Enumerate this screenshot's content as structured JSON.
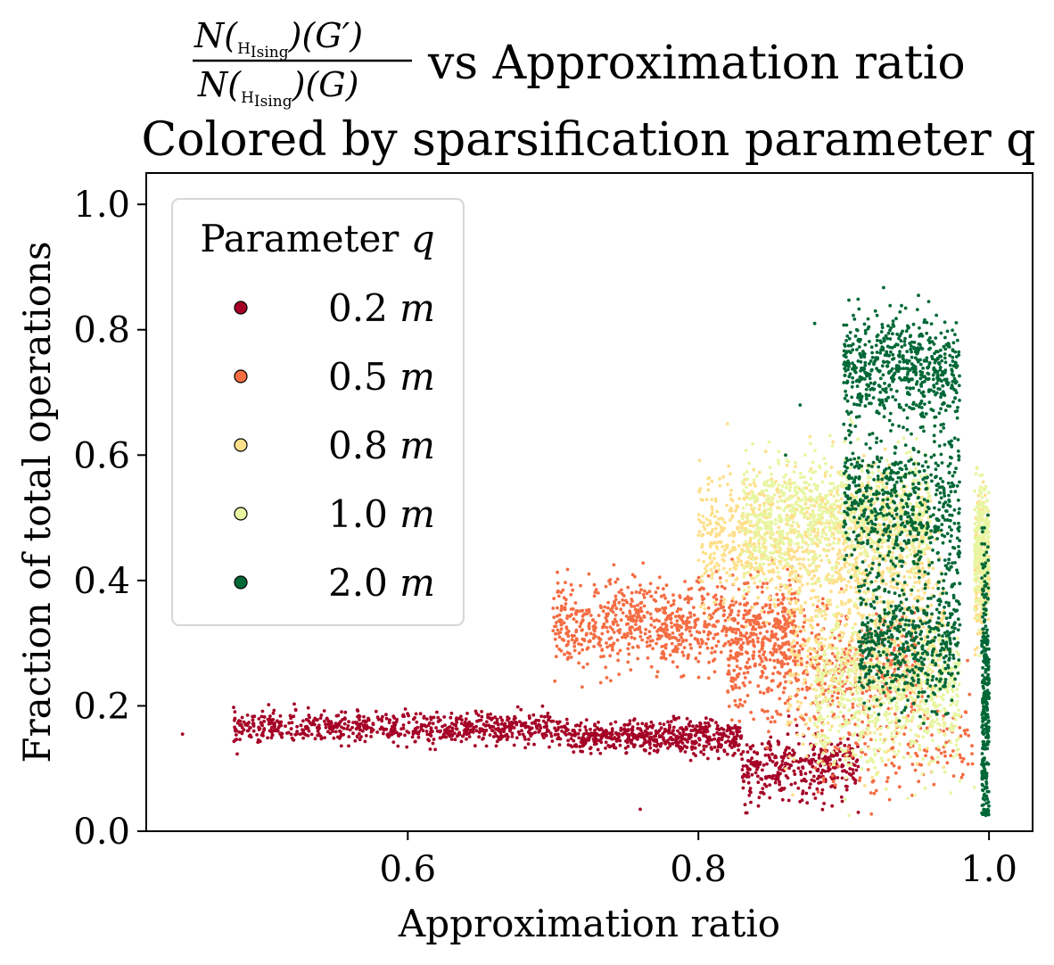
{
  "chart_data": {
    "type": "scatter",
    "title": {
      "fraction": {
        "numerator": {
          "prefix": "N(",
          "sub_main": "H",
          "sub_sub": "Ising",
          "suffix": ")(G′)"
        },
        "denominator": {
          "prefix": "N(",
          "sub_main": "H",
          "sub_sub": "Ising",
          "suffix": ")(G)"
        }
      },
      "line1_rest": "vs Approximation ratio",
      "line2": "Colored by sparsification parameter q"
    },
    "xlabel": "Approximation ratio",
    "ylabel": "Fraction of total operations",
    "xlim": [
      0.42,
      1.03
    ],
    "ylim": [
      0.0,
      1.05
    ],
    "xticks": [
      {
        "value": 0.6,
        "label": "0.6"
      },
      {
        "value": 0.8,
        "label": "0.8"
      },
      {
        "value": 1.0,
        "label": "1.0"
      }
    ],
    "yticks": [
      {
        "value": 0.0,
        "label": "0.0"
      },
      {
        "value": 0.2,
        "label": "0.2"
      },
      {
        "value": 0.4,
        "label": "0.4"
      },
      {
        "value": 0.6,
        "label": "0.6"
      },
      {
        "value": 0.8,
        "label": "0.8"
      },
      {
        "value": 1.0,
        "label": "1.0"
      }
    ],
    "grid": false,
    "legend": {
      "title": "Parameter q",
      "placement": "upper-left"
    },
    "series": [
      {
        "name": "0.2 m",
        "color": "#a50026",
        "approx_points": 1600,
        "clusters": [
          {
            "x_range": [
              0.48,
              0.71
            ],
            "y_center": 0.165,
            "y_spread": 0.012,
            "weight": 0.45
          },
          {
            "x_range": [
              0.71,
              0.83
            ],
            "y_center": 0.15,
            "y_spread": 0.013,
            "weight": 0.33
          },
          {
            "x_range": [
              0.83,
              0.91
            ],
            "y_center": 0.1,
            "y_spread": 0.025,
            "weight": 0.22
          }
        ],
        "outliers": [
          [
            0.445,
            0.155
          ],
          [
            0.76,
            0.035
          ],
          [
            0.91,
            0.03
          ]
        ]
      },
      {
        "name": "0.5 m",
        "color": "#f46d43",
        "approx_points": 1600,
        "clusters": [
          {
            "x_range": [
              0.7,
              0.87
            ],
            "y_center": 0.33,
            "y_spread": 0.035,
            "weight": 0.55
          },
          {
            "x_range": [
              0.82,
              0.95
            ],
            "y_center": 0.26,
            "y_spread": 0.045,
            "weight": 0.35
          },
          {
            "x_range": [
              0.88,
              0.99
            ],
            "y_center": 0.14,
            "y_spread": 0.04,
            "weight": 0.1
          }
        ],
        "outliers": [
          [
            0.7,
            0.32
          ],
          [
            0.71,
            0.285
          ],
          [
            0.72,
            0.23
          ]
        ]
      },
      {
        "name": "0.8 m",
        "color": "#fee08b",
        "approx_points": 1800,
        "clusters": [
          {
            "x_range": [
              0.8,
              0.96
            ],
            "y_center": 0.47,
            "y_spread": 0.05,
            "weight": 0.55
          },
          {
            "x_range": [
              0.86,
              0.97
            ],
            "y_center": 0.3,
            "y_spread": 0.08,
            "weight": 0.35
          },
          {
            "x_range": [
              0.99,
              1.0
            ],
            "y_center": 0.42,
            "y_spread": 0.06,
            "weight": 0.1
          }
        ],
        "outliers": [
          [
            0.82,
            0.65
          ]
        ]
      },
      {
        "name": "1.0 m",
        "color": "#e8f6a2",
        "approx_points": 1800,
        "clusters": [
          {
            "x_range": [
              0.83,
              0.96
            ],
            "y_center": 0.5,
            "y_spread": 0.05,
            "weight": 0.45
          },
          {
            "x_range": [
              0.88,
              0.98
            ],
            "y_center": 0.22,
            "y_spread": 0.06,
            "weight": 0.4
          },
          {
            "x_range": [
              0.99,
              1.0
            ],
            "y_center": 0.45,
            "y_spread": 0.05,
            "weight": 0.15
          }
        ],
        "outliers": [
          [
            0.99,
            0.07
          ],
          [
            0.98,
            0.08
          ]
        ]
      },
      {
        "name": "2.0 m",
        "color": "#006837",
        "approx_points": 2000,
        "clusters": [
          {
            "x_range": [
              0.9,
              0.98
            ],
            "y_center": 0.74,
            "y_spread": 0.04,
            "weight": 0.3
          },
          {
            "x_range": [
              0.9,
              0.98
            ],
            "y_center": 0.52,
            "y_spread": 0.06,
            "weight": 0.3
          },
          {
            "x_range": [
              0.91,
              0.98
            ],
            "y_center": 0.3,
            "y_spread": 0.05,
            "weight": 0.25
          },
          {
            "x_range": [
              0.995,
              1.0
            ],
            "y_center": 0.2,
            "y_spread": 0.12,
            "weight": 0.15
          }
        ],
        "outliers": [
          [
            0.88,
            0.81
          ],
          [
            0.86,
            0.6
          ],
          [
            0.87,
            0.68
          ]
        ]
      }
    ]
  }
}
